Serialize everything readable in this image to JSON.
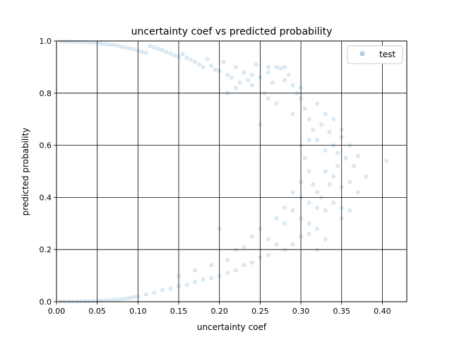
{
  "chart_data": {
    "type": "scatter",
    "title": "uncertainty coef vs predicted probability",
    "xlabel": "uncertainty coef",
    "ylabel": "predicted probability",
    "xlim": [
      0,
      0.43
    ],
    "ylim": [
      0,
      1
    ],
    "xticks": [
      0,
      0.05,
      0.1,
      0.15,
      0.2,
      0.25,
      0.3,
      0.35,
      0.4
    ],
    "xtick_labels": [
      "0.00",
      "0.05",
      "0.10",
      "0.15",
      "0.20",
      "0.25",
      "0.30",
      "0.35",
      "0.40"
    ],
    "yticks": [
      0,
      0.2,
      0.4,
      0.6,
      0.8,
      1.0
    ],
    "ytick_labels": [
      "0.0",
      "0.2",
      "0.4",
      "0.6",
      "0.8",
      "1.0"
    ],
    "grid": true,
    "legend_position": "upper right",
    "series": [
      {
        "name": "test",
        "color": "#1f77b4",
        "alpha": 0.15,
        "points": [
          [
            0.005,
            0.998
          ],
          [
            0.01,
            0.997
          ],
          [
            0.015,
            0.998
          ],
          [
            0.02,
            0.996
          ],
          [
            0.025,
            0.997
          ],
          [
            0.03,
            0.995
          ],
          [
            0.035,
            0.996
          ],
          [
            0.04,
            0.994
          ],
          [
            0.045,
            0.993
          ],
          [
            0.05,
            0.992
          ],
          [
            0.055,
            0.99
          ],
          [
            0.06,
            0.988
          ],
          [
            0.065,
            0.986
          ],
          [
            0.07,
            0.985
          ],
          [
            0.075,
            0.982
          ],
          [
            0.08,
            0.978
          ],
          [
            0.085,
            0.975
          ],
          [
            0.09,
            0.972
          ],
          [
            0.095,
            0.968
          ],
          [
            0.1,
            0.962
          ],
          [
            0.105,
            0.958
          ],
          [
            0.11,
            0.955
          ],
          [
            0.115,
            0.98
          ],
          [
            0.12,
            0.975
          ],
          [
            0.125,
            0.97
          ],
          [
            0.13,
            0.965
          ],
          [
            0.135,
            0.958
          ],
          [
            0.14,
            0.952
          ],
          [
            0.145,
            0.945
          ],
          [
            0.15,
            0.94
          ],
          [
            0.155,
            0.95
          ],
          [
            0.16,
            0.935
          ],
          [
            0.165,
            0.928
          ],
          [
            0.17,
            0.92
          ],
          [
            0.175,
            0.91
          ],
          [
            0.18,
            0.9
          ],
          [
            0.185,
            0.93
          ],
          [
            0.19,
            0.905
          ],
          [
            0.195,
            0.89
          ],
          [
            0.2,
            0.885
          ],
          [
            0.205,
            0.92
          ],
          [
            0.21,
            0.87
          ],
          [
            0.215,
            0.86
          ],
          [
            0.22,
            0.9
          ],
          [
            0.225,
            0.84
          ],
          [
            0.23,
            0.88
          ],
          [
            0.235,
            0.85
          ],
          [
            0.24,
            0.83
          ],
          [
            0.245,
            0.91
          ],
          [
            0.25,
            0.86
          ],
          [
            0.255,
            0.8
          ],
          [
            0.26,
            0.88
          ],
          [
            0.265,
            0.84
          ],
          [
            0.27,
            0.9
          ],
          [
            0.275,
            0.895
          ],
          [
            0.28,
            0.9
          ],
          [
            0.285,
            0.87
          ],
          [
            0.29,
            0.83
          ],
          [
            0.295,
            0.8
          ],
          [
            0.3,
            0.78
          ],
          [
            0.305,
            0.74
          ],
          [
            0.31,
            0.7
          ],
          [
            0.315,
            0.66
          ],
          [
            0.32,
            0.62
          ],
          [
            0.325,
            0.68
          ],
          [
            0.33,
            0.72
          ],
          [
            0.335,
            0.65
          ],
          [
            0.34,
            0.6
          ],
          [
            0.345,
            0.57
          ],
          [
            0.35,
            0.63
          ],
          [
            0.355,
            0.55
          ],
          [
            0.36,
            0.6
          ],
          [
            0.365,
            0.52
          ],
          [
            0.37,
            0.56
          ],
          [
            0.38,
            0.48
          ],
          [
            0.405,
            0.54
          ],
          [
            0.3,
            0.6
          ],
          [
            0.305,
            0.55
          ],
          [
            0.31,
            0.5
          ],
          [
            0.315,
            0.45
          ],
          [
            0.32,
            0.42
          ],
          [
            0.325,
            0.4
          ],
          [
            0.33,
            0.5
          ],
          [
            0.335,
            0.45
          ],
          [
            0.34,
            0.48
          ],
          [
            0.345,
            0.52
          ],
          [
            0.35,
            0.44
          ],
          [
            0.36,
            0.46
          ],
          [
            0.3,
            0.4
          ],
          [
            0.31,
            0.38
          ],
          [
            0.32,
            0.36
          ],
          [
            0.33,
            0.35
          ],
          [
            0.34,
            0.38
          ],
          [
            0.35,
            0.36
          ],
          [
            0.29,
            0.35
          ],
          [
            0.3,
            0.32
          ],
          [
            0.31,
            0.3
          ],
          [
            0.32,
            0.28
          ],
          [
            0.3,
            0.25
          ],
          [
            0.29,
            0.22
          ],
          [
            0.28,
            0.2
          ],
          [
            0.27,
            0.22
          ],
          [
            0.26,
            0.18
          ],
          [
            0.25,
            0.17
          ],
          [
            0.24,
            0.15
          ],
          [
            0.23,
            0.14
          ],
          [
            0.22,
            0.12
          ],
          [
            0.21,
            0.11
          ],
          [
            0.2,
            0.1
          ],
          [
            0.19,
            0.09
          ],
          [
            0.18,
            0.085
          ],
          [
            0.17,
            0.075
          ],
          [
            0.16,
            0.065
          ],
          [
            0.15,
            0.06
          ],
          [
            0.14,
            0.05
          ],
          [
            0.13,
            0.045
          ],
          [
            0.12,
            0.035
          ],
          [
            0.11,
            0.028
          ],
          [
            0.1,
            0.02
          ],
          [
            0.095,
            0.018
          ],
          [
            0.09,
            0.015
          ],
          [
            0.085,
            0.012
          ],
          [
            0.08,
            0.01
          ],
          [
            0.075,
            0.008
          ],
          [
            0.07,
            0.007
          ],
          [
            0.065,
            0.006
          ],
          [
            0.06,
            0.005
          ],
          [
            0.055,
            0.004
          ],
          [
            0.05,
            0.003
          ],
          [
            0.045,
            0.003
          ],
          [
            0.04,
            0.002
          ],
          [
            0.035,
            0.002
          ],
          [
            0.03,
            0.002
          ],
          [
            0.025,
            0.001
          ],
          [
            0.02,
            0.001
          ],
          [
            0.015,
            0.001
          ],
          [
            0.01,
            0.001
          ],
          [
            0.005,
            0.001
          ],
          [
            0.2,
            0.28
          ],
          [
            0.22,
            0.2
          ],
          [
            0.24,
            0.25
          ],
          [
            0.26,
            0.24
          ],
          [
            0.28,
            0.3
          ],
          [
            0.27,
            0.32
          ],
          [
            0.25,
            0.28
          ],
          [
            0.23,
            0.21
          ],
          [
            0.21,
            0.16
          ],
          [
            0.19,
            0.14
          ],
          [
            0.17,
            0.12
          ],
          [
            0.15,
            0.1
          ],
          [
            0.28,
            0.36
          ],
          [
            0.29,
            0.42
          ],
          [
            0.3,
            0.46
          ],
          [
            0.31,
            0.62
          ],
          [
            0.33,
            0.58
          ],
          [
            0.34,
            0.7
          ],
          [
            0.32,
            0.76
          ],
          [
            0.3,
            0.82
          ],
          [
            0.28,
            0.85
          ],
          [
            0.26,
            0.9
          ],
          [
            0.24,
            0.87
          ],
          [
            0.22,
            0.82
          ],
          [
            0.21,
            0.8
          ],
          [
            0.25,
            0.68
          ],
          [
            0.27,
            0.76
          ],
          [
            0.29,
            0.72
          ],
          [
            0.26,
            0.78
          ],
          [
            0.35,
            0.66
          ],
          [
            0.37,
            0.42
          ],
          [
            0.36,
            0.35
          ],
          [
            0.35,
            0.32
          ],
          [
            0.33,
            0.24
          ],
          [
            0.32,
            0.2
          ],
          [
            0.31,
            0.26
          ]
        ]
      }
    ]
  }
}
